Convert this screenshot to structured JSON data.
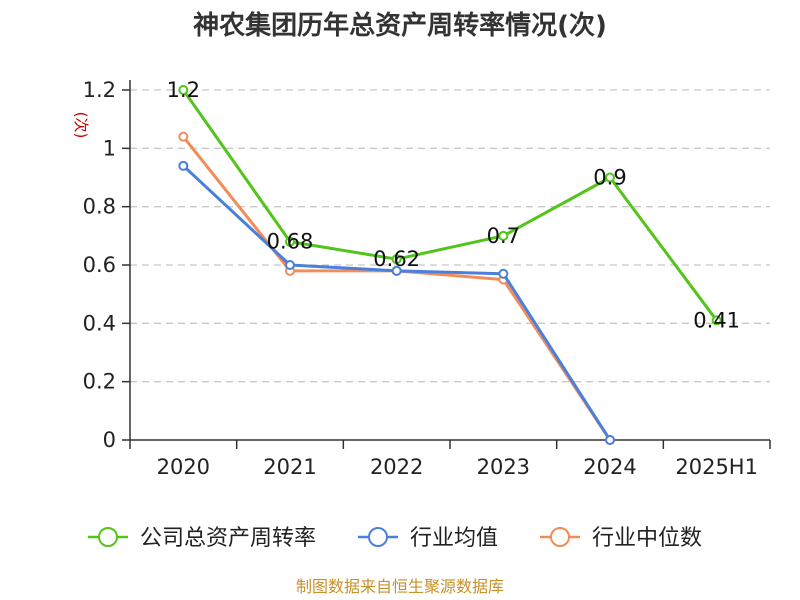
{
  "chart_data": {
    "type": "line",
    "title": "神农集团历年总资产周转率情况(次)",
    "ylabel": "(次)",
    "xlabel": "",
    "categories": [
      "2020",
      "2021",
      "2022",
      "2023",
      "2024",
      "2025H1"
    ],
    "ylim": [
      0,
      1.2
    ],
    "yticks": [
      "0",
      "0.2",
      "0.4",
      "0.6",
      "0.8",
      "1",
      "1.2"
    ],
    "grid": "horizontal dashed",
    "legend_position": "bottom",
    "series": [
      {
        "name": "公司总资产周转率",
        "color": "#52c41a",
        "values": [
          1.2,
          0.68,
          0.62,
          0.7,
          0.9,
          0.41
        ],
        "labels": [
          "1.2",
          "0.68",
          "0.62",
          "0.7",
          "0.9",
          "0.41"
        ]
      },
      {
        "name": "行业均值",
        "color": "#4a7fdb",
        "values": [
          0.94,
          0.6,
          0.58,
          0.57,
          0,
          null
        ]
      },
      {
        "name": "行业中位数",
        "color": "#f28c5a",
        "values": [
          1.04,
          0.58,
          0.58,
          0.55,
          0,
          null
        ]
      }
    ]
  },
  "source": "制图数据来自恒生聚源数据库"
}
